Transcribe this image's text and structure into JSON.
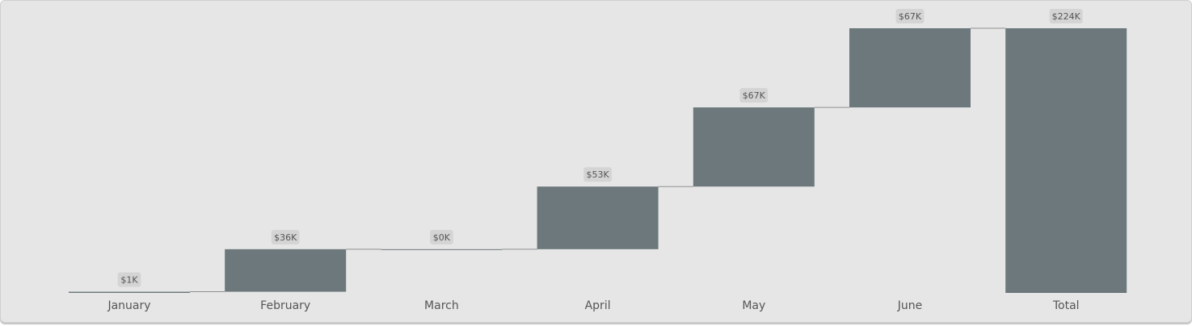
{
  "chart_data": {
    "type": "waterfall",
    "title": "",
    "xlabel": "",
    "ylabel": "",
    "categories": [
      "January",
      "February",
      "March",
      "April",
      "May",
      "June",
      "Total"
    ],
    "values": [
      1,
      36,
      0,
      53,
      67,
      67,
      224
    ],
    "data_labels": [
      "$1K",
      "$36K",
      "$0K",
      "$53K",
      "$67K",
      "$67K",
      "$224K"
    ],
    "total_category": "Total",
    "unit": "$K",
    "ylim": [
      0,
      224
    ],
    "grid": false,
    "legend": "none",
    "colors": {
      "bar": "#6c787c",
      "connector": "#909090",
      "label_background": "#d4d4d4",
      "label_text": "#555555",
      "panel_background": "#e6e6e6"
    }
  }
}
